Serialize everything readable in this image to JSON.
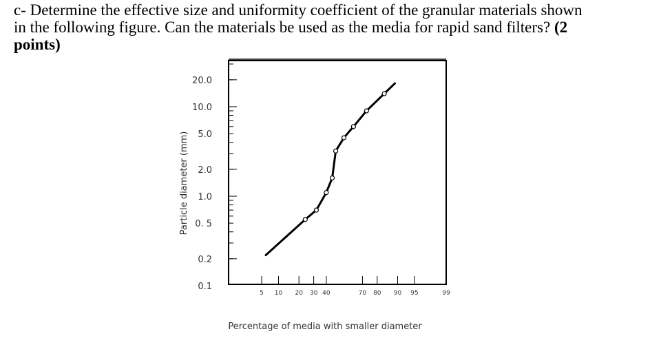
{
  "question": {
    "line1": "c- Determine the effective size and uniformity coefficient of the granular materials shown",
    "line2": "in the following figure. Can the materials be used as the media for rapid sand filters?",
    "points_open": "(2",
    "points_close": "points)"
  },
  "chart_data": {
    "type": "line",
    "xlabel": "Percentage of media with smaller diameter",
    "ylabel": "Particle diameter (mm)",
    "x_scale": "probability",
    "y_scale": "log",
    "xlim": [
      1,
      99.9
    ],
    "ylim": [
      0.08,
      30
    ],
    "x_ticks": [
      "5",
      "10",
      "20",
      "30",
      "40",
      "70",
      "80",
      "90",
      "95",
      "99"
    ],
    "y_ticks": [
      "20.0",
      "10.0",
      "5.0",
      "2.0",
      "1.0",
      "0. 5",
      "0.2",
      "0.1"
    ],
    "series": [
      {
        "x": [
          6,
          24,
          32,
          40,
          45,
          48,
          55,
          63,
          73,
          84
        ],
        "y": [
          0.22,
          0.55,
          0.7,
          1.1,
          1.6,
          3.2,
          4.5,
          6.0,
          9.0,
          14.0
        ],
        "marker": "circle",
        "line_color": "#000000"
      }
    ]
  }
}
